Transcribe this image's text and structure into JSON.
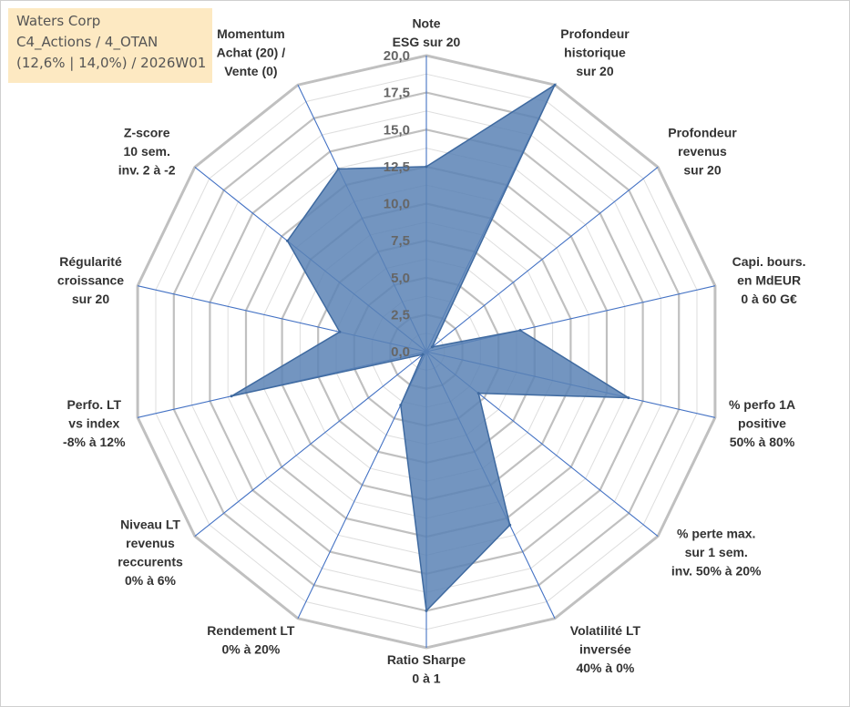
{
  "title_box": {
    "line1": "Waters Corp",
    "line2": "C4_Actions / 4_OTAN",
    "line3": "(12,6% | 14,0%) / 2026W01"
  },
  "chart_data": {
    "type": "radar",
    "title": "",
    "rlim": [
      0,
      20
    ],
    "ticks": [
      "0,0",
      "2,5",
      "5,0",
      "7,5",
      "10,0",
      "12,5",
      "15,0",
      "17,5",
      "20,0"
    ],
    "grid": true,
    "legend": "none",
    "colors": {
      "fill": "#5b83b5",
      "line": "#3f6aa0",
      "grid": "#c0c0c0",
      "spoke": "#4472c4"
    },
    "axes": [
      [
        "Note",
        "ESG sur 20"
      ],
      [
        "Profondeur",
        "historique",
        "sur 20"
      ],
      [
        "Profondeur",
        "revenus",
        "sur 20"
      ],
      [
        "Capi. bours.",
        "en MdEUR",
        "0 à 60 G€"
      ],
      [
        "% perfo 1A",
        "positive",
        "50% à 80%"
      ],
      [
        "% perte max.",
        "sur 1 sem.",
        "inv. 50% à 20%"
      ],
      [
        "Volatilité LT",
        "inversée",
        "40% à 0%"
      ],
      [
        "Ratio Sharpe",
        "0 à 1"
      ],
      [
        "Rendement LT",
        "0% à 20%"
      ],
      [
        "Niveau LT",
        "revenus",
        "reccurents",
        "0% à 6%"
      ],
      [
        "Perfo. LT",
        "vs index",
        "-8% à 12%"
      ],
      [
        "Régularité",
        "croissance",
        "sur 20"
      ],
      [
        "Z-score",
        "10 sem.",
        "inv. 2 à -2"
      ],
      [
        "Momentum",
        "Achat (20) /",
        "Vente (0)"
      ]
    ],
    "values": [
      12.5,
      20.0,
      0.5,
      6.5,
      14.0,
      4.5,
      13.0,
      17.5,
      4.0,
      0.3,
      13.5,
      6.0,
      12.0,
      13.7
    ]
  }
}
